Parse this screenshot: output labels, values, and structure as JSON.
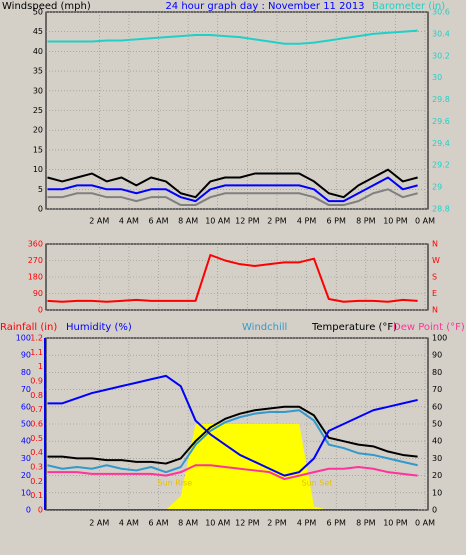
{
  "chart_data": [
    {
      "type": "line",
      "title": "24 hour graph day : November 11 2013",
      "y_label": "Windspeed (mph)",
      "y2_label": "Barometer (in)",
      "y_color": "#000000",
      "y2_color": "#20d0c8",
      "x": [
        -1.5,
        -0.5,
        0.5,
        1.5,
        2.5,
        3.5,
        4.5,
        5.5,
        6.5,
        7.5,
        8.5,
        9.5,
        10.5,
        11.5,
        12.5,
        13.5,
        14.5,
        15.5,
        16.5,
        17.5,
        18.5,
        19.5,
        20.5,
        21.5,
        22.5,
        23.5
      ],
      "xlim": [
        -1.6,
        24.2
      ],
      "xticks": [
        {
          "value": 2,
          "label": "2 AM"
        },
        {
          "value": 4,
          "label": "4 AM"
        },
        {
          "value": 6,
          "label": "6 AM"
        },
        {
          "value": 8,
          "label": "8 AM"
        },
        {
          "value": 10,
          "label": "10 AM"
        },
        {
          "value": 12,
          "label": "12 PM"
        },
        {
          "value": 14,
          "label": "2 PM"
        },
        {
          "value": 16,
          "label": "4 PM"
        },
        {
          "value": 18,
          "label": "6 PM"
        },
        {
          "value": 20,
          "label": "8 PM"
        },
        {
          "value": 22,
          "label": "10 PM"
        },
        {
          "value": 24,
          "label": "0 AM"
        }
      ],
      "ylim": [
        0,
        50
      ],
      "yticks": [
        0,
        5,
        10,
        15,
        20,
        25,
        30,
        35,
        40,
        45,
        50
      ],
      "y2lim": [
        28.8,
        30.6
      ],
      "y2ticks": [
        28.8,
        29,
        29.2,
        29.4,
        29.6,
        29.8,
        30,
        30.2,
        30.4,
        30.6
      ],
      "grid": "y",
      "series": [
        {
          "color": "#808080",
          "values": [
            3,
            3,
            4,
            4,
            3,
            3,
            2,
            3,
            3,
            1,
            1,
            3,
            4,
            4,
            4,
            4,
            4,
            4,
            3,
            1,
            1,
            2,
            4,
            5,
            3,
            4
          ]
        },
        {
          "color": "#000000",
          "values": [
            8,
            7,
            8,
            9,
            7,
            8,
            6,
            8,
            7,
            4,
            3,
            7,
            8,
            8,
            9,
            9,
            9,
            9,
            7,
            4,
            3,
            6,
            8,
            10,
            7,
            8
          ]
        },
        {
          "color": "#0000ff",
          "values": [
            5,
            5,
            6,
            6,
            5,
            5,
            4,
            5,
            5,
            3,
            2,
            5,
            6,
            6,
            6,
            6,
            6,
            6,
            5,
            2,
            2,
            4,
            6,
            8,
            5,
            6
          ]
        },
        {
          "color": "#20d0c8",
          "axis": "y2",
          "values": [
            30.33,
            30.33,
            30.33,
            30.33,
            30.34,
            30.34,
            30.35,
            30.36,
            30.37,
            30.38,
            30.39,
            30.39,
            30.38,
            30.37,
            30.35,
            30.33,
            30.31,
            30.31,
            30.32,
            30.34,
            30.36,
            30.38,
            30.4,
            30.41,
            30.42,
            30.43
          ]
        }
      ]
    },
    {
      "type": "line",
      "y_color": "#ff0000",
      "y2_color": "#ff0000",
      "ylim": [
        0,
        360
      ],
      "yticks": [
        0,
        90,
        180,
        270,
        360
      ],
      "y2lim": [
        0,
        360
      ],
      "y2ticks": [
        {
          "value": 0,
          "label": "N"
        },
        {
          "value": 90,
          "label": "E"
        },
        {
          "value": 180,
          "label": "S"
        },
        {
          "value": 270,
          "label": "W"
        },
        {
          "value": 360,
          "label": "N"
        }
      ],
      "grid": "y",
      "series": [
        {
          "color": "#ff0000",
          "values": [
            50,
            45,
            50,
            50,
            45,
            50,
            55,
            50,
            50,
            50,
            50,
            300,
            270,
            250,
            240,
            250,
            260,
            260,
            280,
            60,
            45,
            50,
            50,
            45,
            55,
            50
          ]
        }
      ]
    },
    {
      "type": "line",
      "y_label": "Rainfall (in)",
      "y3_label": "Humidity (%)",
      "y2_label": "Temperature (°F)",
      "y_color": "#ff0000",
      "y3_color": "#0000ff",
      "y2_color": "#000000",
      "ylim": [
        0,
        1.2
      ],
      "yticks": [
        0,
        0.1,
        0.2,
        0.3,
        0.4,
        0.5,
        0.6,
        0.7,
        0.8,
        0.9,
        1,
        1.1,
        1.2
      ],
      "y3lim": [
        0,
        100
      ],
      "y3ticks": [
        0,
        10,
        20,
        30,
        40,
        50,
        60,
        70,
        80,
        90,
        100
      ],
      "y2lim": [
        0,
        100
      ],
      "y2ticks": [
        0,
        10,
        20,
        30,
        40,
        50,
        60,
        70,
        80,
        90,
        100
      ],
      "grid": "y2",
      "annotations": [
        "Sun Rise",
        "Sun Set"
      ],
      "series": [
        {
          "color": "#ffff00",
          "axis": "y2",
          "area": true,
          "values": [
            0,
            0,
            0,
            0,
            0,
            0,
            0,
            0,
            0,
            8,
            50,
            50,
            50,
            50,
            50,
            50,
            50,
            50,
            2,
            0,
            0,
            0,
            0,
            0,
            0,
            0
          ]
        },
        {
          "color": "#ff0000",
          "values": [
            0,
            0,
            0,
            0,
            0,
            0,
            0,
            0,
            0,
            0,
            0,
            0,
            0,
            0,
            0,
            0,
            0,
            0,
            0,
            0,
            0,
            0,
            0,
            0,
            0,
            0
          ]
        },
        {
          "name": "Windchill",
          "color": "#3399cc",
          "axis": "y2",
          "values": [
            26,
            24,
            25,
            24,
            26,
            24,
            23,
            25,
            22,
            25,
            38,
            46,
            51,
            54,
            56,
            57,
            57,
            58,
            52,
            38,
            36,
            33,
            32,
            30,
            28,
            26
          ]
        },
        {
          "color": "#000000",
          "axis": "y2",
          "values": [
            31,
            31,
            30,
            30,
            29,
            29,
            28,
            28,
            27,
            30,
            40,
            48,
            53,
            56,
            58,
            59,
            60,
            60,
            55,
            42,
            40,
            38,
            37,
            34,
            32,
            31
          ]
        },
        {
          "name": "Dew Point (°F)",
          "color": "#ff3399",
          "axis": "y2",
          "values": [
            22,
            22,
            22,
            21,
            21,
            21,
            21,
            21,
            20,
            22,
            26,
            26,
            25,
            24,
            23,
            22,
            18,
            20,
            22,
            24,
            24,
            25,
            24,
            22,
            21,
            20
          ]
        },
        {
          "color": "#0000ff",
          "axis": "y3",
          "values": [
            62,
            62,
            65,
            68,
            70,
            72,
            74,
            76,
            78,
            72,
            52,
            44,
            38,
            32,
            28,
            24,
            20,
            22,
            30,
            46,
            50,
            54,
            58,
            60,
            62,
            64
          ]
        }
      ]
    }
  ]
}
